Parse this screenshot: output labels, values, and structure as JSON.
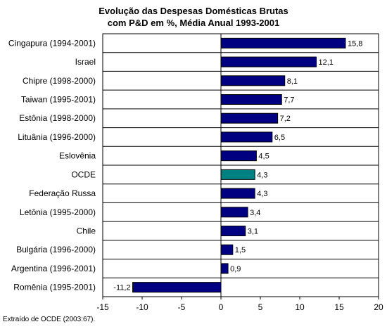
{
  "chart_data": {
    "type": "bar",
    "orientation": "horizontal",
    "title_line1": "Evolução das Despesas Domésticas Brutas",
    "title_line2": "com P&D em %, Média Anual 1993-2001",
    "categories": [
      "Cingapura (1994-2001)",
      "Israel",
      "Chipre (1998-2000)",
      "Taiwan (1995-2001)",
      "Estônia (1998-2000)",
      "Lituânia (1996-2000)",
      "Eslovênia",
      "OCDE",
      "Federação Russa",
      "Letônia (1995-2000)",
      "Chile",
      "Bulgária (1996-2000)",
      "Argentina (1996-2001)",
      "Romênia (1995-2001)"
    ],
    "values": [
      15.8,
      12.1,
      8.1,
      7.7,
      7.2,
      6.5,
      4.5,
      4.3,
      4.3,
      3.4,
      3.1,
      1.5,
      0.9,
      -11.2
    ],
    "value_labels": [
      "15,8",
      "12,1",
      "8,1",
      "7,7",
      "7,2",
      "6,5",
      "4,5",
      "4,3",
      "4,3",
      "3,4",
      "3,1",
      "1,5",
      "0,9",
      "-11,2"
    ],
    "xlim": [
      -15,
      20
    ],
    "xticks": [
      -15,
      -10,
      -5,
      0,
      5,
      10,
      15,
      20
    ],
    "highlight_category": "OCDE",
    "colors": {
      "bar": "#000080",
      "highlight": "#008080",
      "border": "#000000"
    },
    "grid": false
  },
  "source_note": "Extraído de OCDE (2003:67)."
}
